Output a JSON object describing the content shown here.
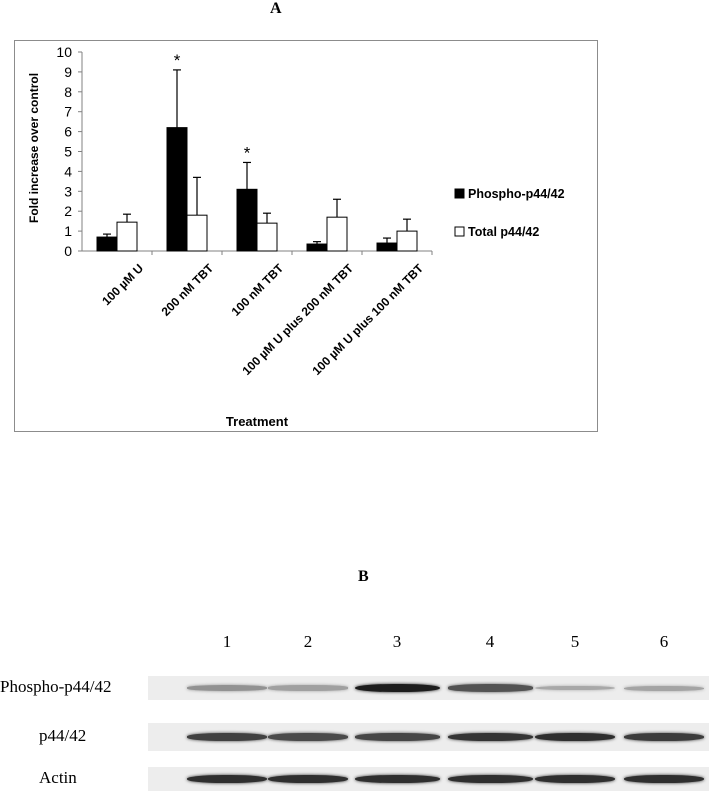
{
  "panel_a_label": "A",
  "panel_b_label": "B",
  "chart_data": {
    "type": "bar",
    "title": "",
    "xlabel": "Treatment",
    "ylabel": "Fold increase over control",
    "ylim": [
      0,
      10
    ],
    "yticks": [
      0,
      1,
      2,
      3,
      4,
      5,
      6,
      7,
      8,
      9,
      10
    ],
    "grid": false,
    "legend_position": "right",
    "categories": [
      "100 µM U",
      "200 nM TBT",
      "100 nM TBT",
      "100 µM U plus 200 nM TBT",
      "100 µM U plus 100 nM TBT"
    ],
    "series": [
      {
        "name": "Phospho-p44/42",
        "color": "#000000",
        "values": [
          0.7,
          6.2,
          3.1,
          0.35,
          0.4
        ],
        "errors": [
          0.15,
          2.9,
          1.35,
          0.12,
          0.25
        ]
      },
      {
        "name": "Total p44/42",
        "color": "#ffffff",
        "values": [
          1.45,
          1.8,
          1.4,
          1.7,
          1.0
        ],
        "errors": [
          0.4,
          1.9,
          0.5,
          0.9,
          0.6
        ]
      }
    ],
    "significance": [
      "",
      "*",
      "*",
      "",
      ""
    ]
  },
  "blot": {
    "lanes": [
      "1",
      "2",
      "3",
      "4",
      "5",
      "6"
    ],
    "rows": [
      {
        "label": "Phospho-p44/42",
        "intensities": [
          0.3,
          0.22,
          0.95,
          0.65,
          0.18,
          0.2
        ]
      },
      {
        "label": "p44/42",
        "intensities": [
          0.75,
          0.7,
          0.72,
          0.82,
          0.85,
          0.78
        ]
      },
      {
        "label": "Actin",
        "intensities": [
          0.85,
          0.85,
          0.85,
          0.85,
          0.85,
          0.85
        ]
      }
    ]
  }
}
